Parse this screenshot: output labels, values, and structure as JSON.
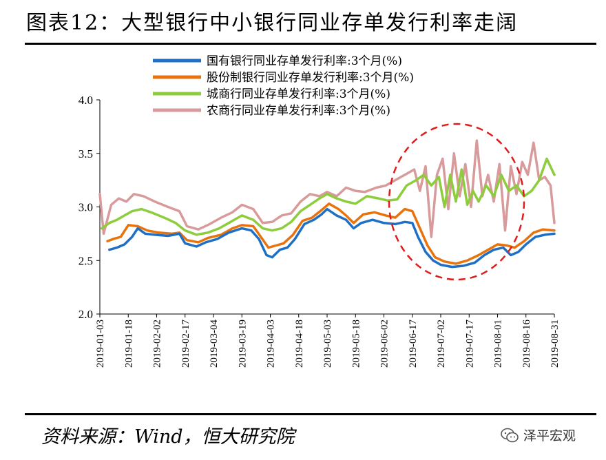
{
  "header": {
    "title": "图表12：大型银行中小银行同业存单发行利率走阔"
  },
  "footer": {
    "source": "资料来源：Wind，恒大研究院",
    "watermark": "泽平宏观"
  },
  "chart_data": {
    "type": "line",
    "title": "图表12：大型银行中小银行同业存单发行利率走阔",
    "xlabel": "",
    "ylabel": "",
    "ylim": [
      2.0,
      4.0
    ],
    "yticks": [
      "2.0",
      "2.5",
      "3.0",
      "3.5",
      "4.0"
    ],
    "ytick_values": [
      2.0,
      2.5,
      3.0,
      3.5,
      4.0
    ],
    "x_range": [
      "2019-01-03",
      "2019-08-31"
    ],
    "xticks": [
      "2019-01-03",
      "2019-01-18",
      "2019-02-02",
      "2019-02-17",
      "2019-03-04",
      "2019-03-19",
      "2019-04-03",
      "2019-04-18",
      "2019-05-03",
      "2019-05-18",
      "2019-06-02",
      "2019-06-17",
      "2019-07-02",
      "2019-07-17",
      "2019-08-01",
      "2019-08-16",
      "2019-08-31"
    ],
    "legend_position": "top-center",
    "annotation": "red dashed ellipse around mid-June to mid-August 2019",
    "series": [
      {
        "name": "国有银行同业存单发行利率:3个月(%)",
        "color": "#1f6fc5",
        "points": [
          [
            "2019-01-08",
            2.6
          ],
          [
            "2019-01-12",
            2.62
          ],
          [
            "2019-01-16",
            2.65
          ],
          [
            "2019-01-20",
            2.72
          ],
          [
            "2019-01-23",
            2.8
          ],
          [
            "2019-01-27",
            2.75
          ],
          [
            "2019-02-01",
            2.74
          ],
          [
            "2019-02-08",
            2.73
          ],
          [
            "2019-02-14",
            2.75
          ],
          [
            "2019-02-17",
            2.66
          ],
          [
            "2019-02-23",
            2.63
          ],
          [
            "2019-02-28",
            2.67
          ],
          [
            "2019-03-06",
            2.7
          ],
          [
            "2019-03-12",
            2.76
          ],
          [
            "2019-03-19",
            2.8
          ],
          [
            "2019-03-24",
            2.78
          ],
          [
            "2019-03-28",
            2.7
          ],
          [
            "2019-04-01",
            2.55
          ],
          [
            "2019-04-04",
            2.53
          ],
          [
            "2019-04-08",
            2.6
          ],
          [
            "2019-04-12",
            2.62
          ],
          [
            "2019-04-16",
            2.7
          ],
          [
            "2019-04-21",
            2.84
          ],
          [
            "2019-04-26",
            2.88
          ],
          [
            "2019-04-30",
            2.93
          ],
          [
            "2019-05-03",
            2.98
          ],
          [
            "2019-05-08",
            2.92
          ],
          [
            "2019-05-13",
            2.88
          ],
          [
            "2019-05-17",
            2.8
          ],
          [
            "2019-05-21",
            2.85
          ],
          [
            "2019-05-27",
            2.88
          ],
          [
            "2019-06-02",
            2.85
          ],
          [
            "2019-06-08",
            2.84
          ],
          [
            "2019-06-13",
            2.86
          ],
          [
            "2019-06-17",
            2.85
          ],
          [
            "2019-06-20",
            2.72
          ],
          [
            "2019-06-24",
            2.58
          ],
          [
            "2019-06-28",
            2.5
          ],
          [
            "2019-07-02",
            2.46
          ],
          [
            "2019-07-08",
            2.44
          ],
          [
            "2019-07-14",
            2.45
          ],
          [
            "2019-07-20",
            2.48
          ],
          [
            "2019-07-25",
            2.55
          ],
          [
            "2019-07-30",
            2.6
          ],
          [
            "2019-08-04",
            2.62
          ],
          [
            "2019-08-08",
            2.55
          ],
          [
            "2019-08-12",
            2.58
          ],
          [
            "2019-08-16",
            2.65
          ],
          [
            "2019-08-21",
            2.72
          ],
          [
            "2019-08-26",
            2.74
          ],
          [
            "2019-08-31",
            2.75
          ]
        ]
      },
      {
        "name": "股份制银行同业存单发行利率:3个月(%)",
        "color": "#e8720c",
        "points": [
          [
            "2019-01-07",
            2.68
          ],
          [
            "2019-01-10",
            2.7
          ],
          [
            "2019-01-14",
            2.72
          ],
          [
            "2019-01-18",
            2.83
          ],
          [
            "2019-01-23",
            2.82
          ],
          [
            "2019-01-28",
            2.78
          ],
          [
            "2019-02-03",
            2.76
          ],
          [
            "2019-02-10",
            2.75
          ],
          [
            "2019-02-14",
            2.76
          ],
          [
            "2019-02-18",
            2.69
          ],
          [
            "2019-02-24",
            2.67
          ],
          [
            "2019-03-01",
            2.71
          ],
          [
            "2019-03-08",
            2.74
          ],
          [
            "2019-03-14",
            2.8
          ],
          [
            "2019-03-19",
            2.83
          ],
          [
            "2019-03-25",
            2.82
          ],
          [
            "2019-03-29",
            2.72
          ],
          [
            "2019-04-02",
            2.62
          ],
          [
            "2019-04-06",
            2.64
          ],
          [
            "2019-04-10",
            2.66
          ],
          [
            "2019-04-15",
            2.74
          ],
          [
            "2019-04-20",
            2.87
          ],
          [
            "2019-04-25",
            2.9
          ],
          [
            "2019-04-30",
            2.97
          ],
          [
            "2019-05-04",
            3.03
          ],
          [
            "2019-05-09",
            2.98
          ],
          [
            "2019-05-13",
            2.92
          ],
          [
            "2019-05-17",
            2.85
          ],
          [
            "2019-05-22",
            2.93
          ],
          [
            "2019-05-28",
            2.95
          ],
          [
            "2019-06-03",
            2.92
          ],
          [
            "2019-06-08",
            2.9
          ],
          [
            "2019-06-13",
            2.98
          ],
          [
            "2019-06-17",
            2.96
          ],
          [
            "2019-06-21",
            2.8
          ],
          [
            "2019-06-25",
            2.64
          ],
          [
            "2019-06-29",
            2.53
          ],
          [
            "2019-07-04",
            2.49
          ],
          [
            "2019-07-10",
            2.47
          ],
          [
            "2019-07-16",
            2.5
          ],
          [
            "2019-07-22",
            2.55
          ],
          [
            "2019-07-27",
            2.6
          ],
          [
            "2019-08-01",
            2.65
          ],
          [
            "2019-08-06",
            2.64
          ],
          [
            "2019-08-10",
            2.62
          ],
          [
            "2019-08-15",
            2.68
          ],
          [
            "2019-08-20",
            2.76
          ],
          [
            "2019-08-25",
            2.79
          ],
          [
            "2019-08-31",
            2.78
          ]
        ]
      },
      {
        "name": "城商行同业存单发行利率:3个月(%)",
        "color": "#8dcc3c",
        "points": [
          [
            "2019-01-04",
            2.8
          ],
          [
            "2019-01-08",
            2.85
          ],
          [
            "2019-01-12",
            2.88
          ],
          [
            "2019-01-16",
            2.92
          ],
          [
            "2019-01-20",
            2.96
          ],
          [
            "2019-01-25",
            2.98
          ],
          [
            "2019-01-30",
            2.95
          ],
          [
            "2019-02-06",
            2.9
          ],
          [
            "2019-02-12",
            2.85
          ],
          [
            "2019-02-17",
            2.78
          ],
          [
            "2019-02-23",
            2.74
          ],
          [
            "2019-03-01",
            2.76
          ],
          [
            "2019-03-07",
            2.8
          ],
          [
            "2019-03-13",
            2.86
          ],
          [
            "2019-03-19",
            2.92
          ],
          [
            "2019-03-25",
            2.88
          ],
          [
            "2019-03-30",
            2.8
          ],
          [
            "2019-04-04",
            2.78
          ],
          [
            "2019-04-09",
            2.8
          ],
          [
            "2019-04-14",
            2.86
          ],
          [
            "2019-04-19",
            2.96
          ],
          [
            "2019-04-24",
            3.02
          ],
          [
            "2019-04-29",
            3.08
          ],
          [
            "2019-05-03",
            3.12
          ],
          [
            "2019-05-08",
            3.08
          ],
          [
            "2019-05-13",
            3.05
          ],
          [
            "2019-05-18",
            3.03
          ],
          [
            "2019-05-24",
            3.1
          ],
          [
            "2019-05-30",
            3.08
          ],
          [
            "2019-06-04",
            3.06
          ],
          [
            "2019-06-09",
            3.07
          ],
          [
            "2019-06-14",
            3.2
          ],
          [
            "2019-06-19",
            3.25
          ],
          [
            "2019-06-23",
            3.3
          ],
          [
            "2019-06-27",
            3.2
          ],
          [
            "2019-07-01",
            3.28
          ],
          [
            "2019-07-04",
            3.0
          ],
          [
            "2019-07-07",
            3.3
          ],
          [
            "2019-07-10",
            3.05
          ],
          [
            "2019-07-13",
            3.35
          ],
          [
            "2019-07-16",
            3.02
          ],
          [
            "2019-07-19",
            3.15
          ],
          [
            "2019-07-22",
            3.05
          ],
          [
            "2019-07-26",
            3.2
          ],
          [
            "2019-07-30",
            3.1
          ],
          [
            "2019-08-03",
            3.3
          ],
          [
            "2019-08-07",
            3.15
          ],
          [
            "2019-08-11",
            3.2
          ],
          [
            "2019-08-15",
            3.1
          ],
          [
            "2019-08-19",
            3.15
          ],
          [
            "2019-08-23",
            3.25
          ],
          [
            "2019-08-27",
            3.45
          ],
          [
            "2019-08-31",
            3.3
          ]
        ]
      },
      {
        "name": "农商行同业存单发行利率:3个月(%)",
        "color": "#d89a9a",
        "points": [
          [
            "2019-01-03",
            3.12
          ],
          [
            "2019-01-05",
            2.75
          ],
          [
            "2019-01-09",
            3.02
          ],
          [
            "2019-01-13",
            3.08
          ],
          [
            "2019-01-17",
            3.05
          ],
          [
            "2019-01-21",
            3.12
          ],
          [
            "2019-01-26",
            3.1
          ],
          [
            "2019-02-01",
            3.05
          ],
          [
            "2019-02-08",
            3.0
          ],
          [
            "2019-02-14",
            2.96
          ],
          [
            "2019-02-18",
            2.82
          ],
          [
            "2019-02-24",
            2.79
          ],
          [
            "2019-03-02",
            2.84
          ],
          [
            "2019-03-08",
            2.9
          ],
          [
            "2019-03-14",
            2.95
          ],
          [
            "2019-03-19",
            3.02
          ],
          [
            "2019-03-25",
            2.98
          ],
          [
            "2019-03-30",
            2.85
          ],
          [
            "2019-04-04",
            2.86
          ],
          [
            "2019-04-09",
            2.92
          ],
          [
            "2019-04-14",
            2.94
          ],
          [
            "2019-04-19",
            3.05
          ],
          [
            "2019-04-24",
            3.12
          ],
          [
            "2019-04-29",
            3.1
          ],
          [
            "2019-05-03",
            3.14
          ],
          [
            "2019-05-08",
            3.1
          ],
          [
            "2019-05-13",
            3.18
          ],
          [
            "2019-05-18",
            3.15
          ],
          [
            "2019-05-23",
            3.14
          ],
          [
            "2019-05-29",
            3.18
          ],
          [
            "2019-06-03",
            3.2
          ],
          [
            "2019-06-08",
            3.25
          ],
          [
            "2019-06-13",
            3.3
          ],
          [
            "2019-06-18",
            3.35
          ],
          [
            "2019-06-21",
            3.15
          ],
          [
            "2019-06-24",
            3.38
          ],
          [
            "2019-06-27",
            2.72
          ],
          [
            "2019-06-30",
            3.3
          ],
          [
            "2019-07-03",
            3.45
          ],
          [
            "2019-07-06",
            2.98
          ],
          [
            "2019-07-09",
            3.5
          ],
          [
            "2019-07-12",
            3.1
          ],
          [
            "2019-07-15",
            3.4
          ],
          [
            "2019-07-18",
            3.0
          ],
          [
            "2019-07-21",
            3.62
          ],
          [
            "2019-07-24",
            3.1
          ],
          [
            "2019-07-27",
            3.3
          ],
          [
            "2019-07-30",
            3.05
          ],
          [
            "2019-08-02",
            3.4
          ],
          [
            "2019-08-05",
            2.78
          ],
          [
            "2019-08-08",
            3.38
          ],
          [
            "2019-08-11",
            3.12
          ],
          [
            "2019-08-14",
            3.42
          ],
          [
            "2019-08-17",
            3.3
          ],
          [
            "2019-08-20",
            3.6
          ],
          [
            "2019-08-23",
            3.25
          ],
          [
            "2019-08-26",
            3.28
          ],
          [
            "2019-08-29",
            3.2
          ],
          [
            "2019-08-31",
            2.85
          ]
        ]
      }
    ]
  }
}
